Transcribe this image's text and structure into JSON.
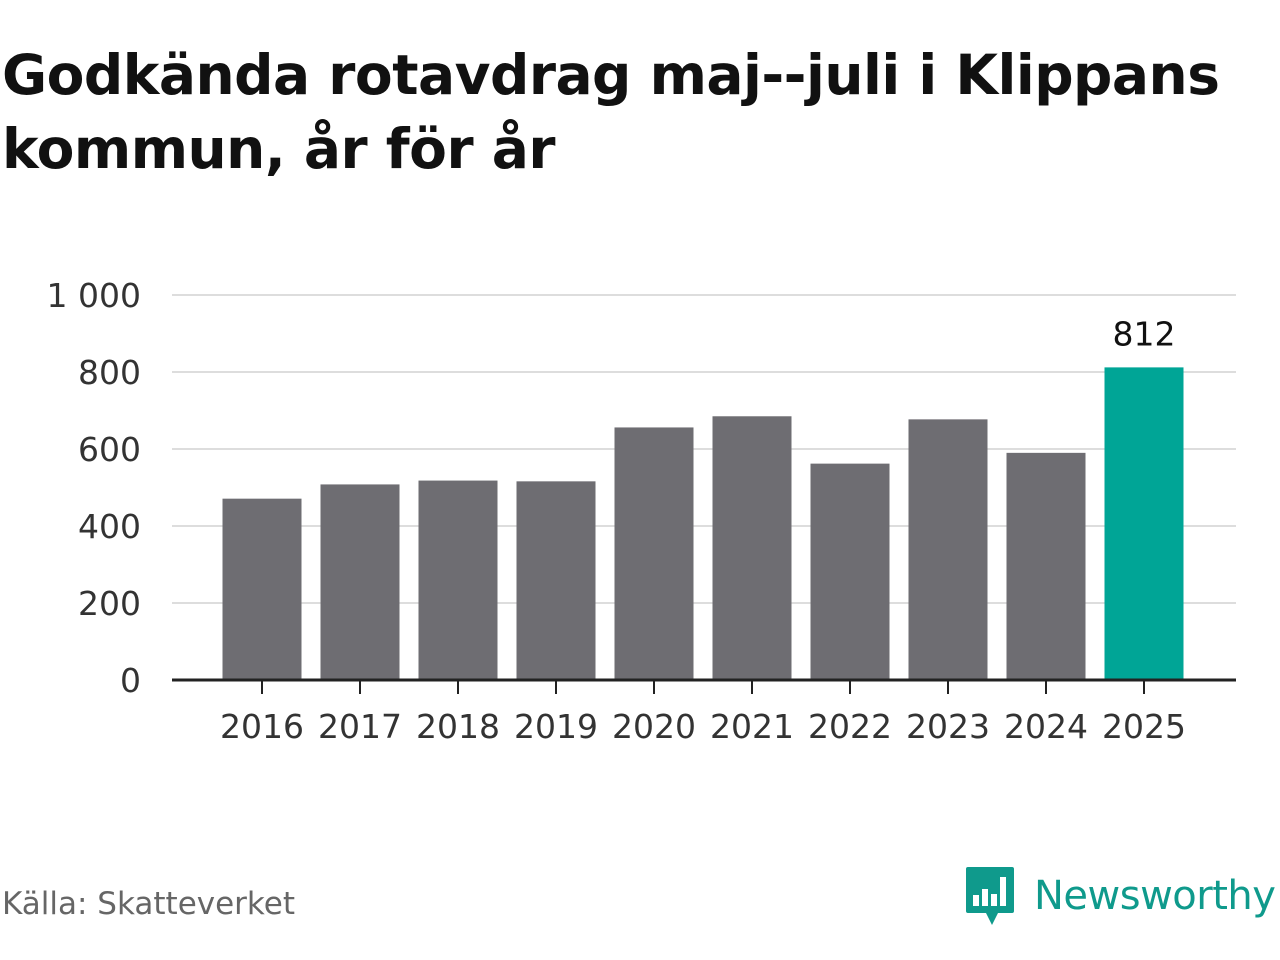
{
  "title": "Godkända rotavdrag maj--juli i Klippans kommun, år för år",
  "source": "Källa: Skatteverket",
  "brand": {
    "name": "Newsworthy",
    "logo_icon": "newsworthy-logo-icon",
    "color": "#0f9a8c"
  },
  "chart_data": {
    "type": "bar",
    "categories": [
      "2016",
      "2017",
      "2018",
      "2019",
      "2020",
      "2021",
      "2022",
      "2023",
      "2024",
      "2025"
    ],
    "values": [
      471,
      508,
      518,
      516,
      656,
      685,
      562,
      677,
      590,
      812
    ],
    "ylim": [
      0,
      1000
    ],
    "yticks": [
      0,
      200,
      400,
      600,
      800,
      1000
    ],
    "ytick_labels": [
      "0",
      "200",
      "400",
      "600",
      "800",
      "1 000"
    ],
    "grid": true,
    "legend": "none",
    "data_labels": [
      {
        "category": "2025",
        "text": "812"
      }
    ],
    "bar_color": "#6e6d72",
    "highlight_color": "#00a596",
    "highlight_category": "2025"
  }
}
